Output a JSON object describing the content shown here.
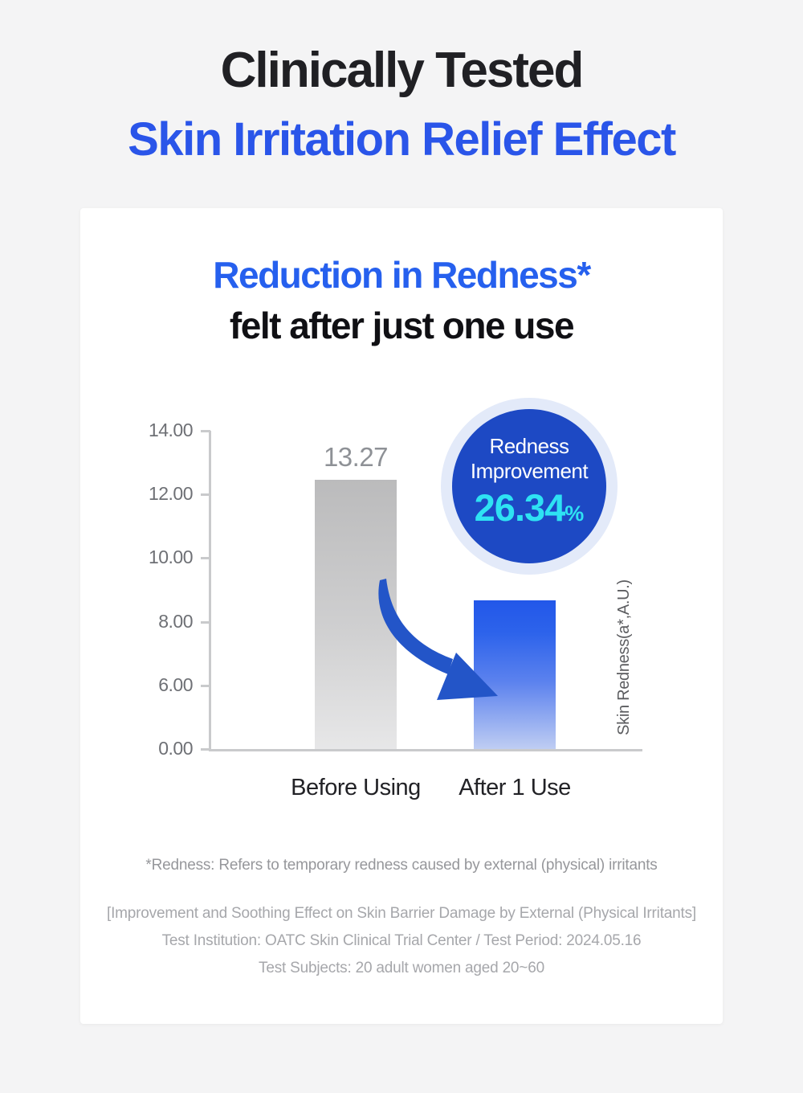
{
  "header": {
    "title_line1": "Clinically Tested",
    "title_line2": "Skin Irritation Relief Effect"
  },
  "card": {
    "heading_line1": "Reduction in Redness*",
    "heading_line2": "felt after just one use",
    "footnote": "*Redness: Refers to temporary redness caused by external (physical) irritants",
    "footer_lines": [
      "[Improvement and Soothing Effect on Skin Barrier Damage by External (Physical Irritants]",
      "Test Institution: OATC Skin Clinical Trial Center / Test Period: 2024.05.16",
      "Test Subjects: 20 adult women aged 20~60"
    ]
  },
  "badge": {
    "line1": "Redness",
    "line2": "Improvement",
    "value": "26.34",
    "percent_sign": "%"
  },
  "chart_data": {
    "type": "bar",
    "title": "Reduction in Redness felt after just one use",
    "categories": [
      "Before Using",
      "After 1 Use"
    ],
    "values": [
      13.27,
      null
    ],
    "value_labels": [
      "13.27",
      ""
    ],
    "improvement_percent": 26.34,
    "xlabel": "",
    "ylabel": "Skin Redness(a*,A.U.)",
    "ylim": [
      0,
      14
    ],
    "yticks_labels": [
      "14.00",
      "12.00",
      "10.00",
      "8.00",
      "6.00",
      "0.00"
    ],
    "yticks_values": [
      14,
      12,
      10,
      8,
      6,
      0
    ],
    "axis_scale_note": "tick marks evenly spaced; 0-6 range compressed into a single step",
    "drawn_values": [
      12.45,
      8.67
    ],
    "grid": false,
    "legend": false,
    "colors": {
      "before_bar": "#bbbbbc",
      "after_bar": "#2257e9",
      "arrow": "#2355c8"
    }
  },
  "colors": {
    "page_background": "#f4f4f5",
    "card_background": "#ffffff",
    "title_dark": "#202024",
    "title_blue": "#2a55e9",
    "heading_blue": "#2660ee",
    "badge_inner_blue": "#1d49c4",
    "badge_halo": "#e3eaf9",
    "badge_cyan": "#2ee2f3"
  }
}
